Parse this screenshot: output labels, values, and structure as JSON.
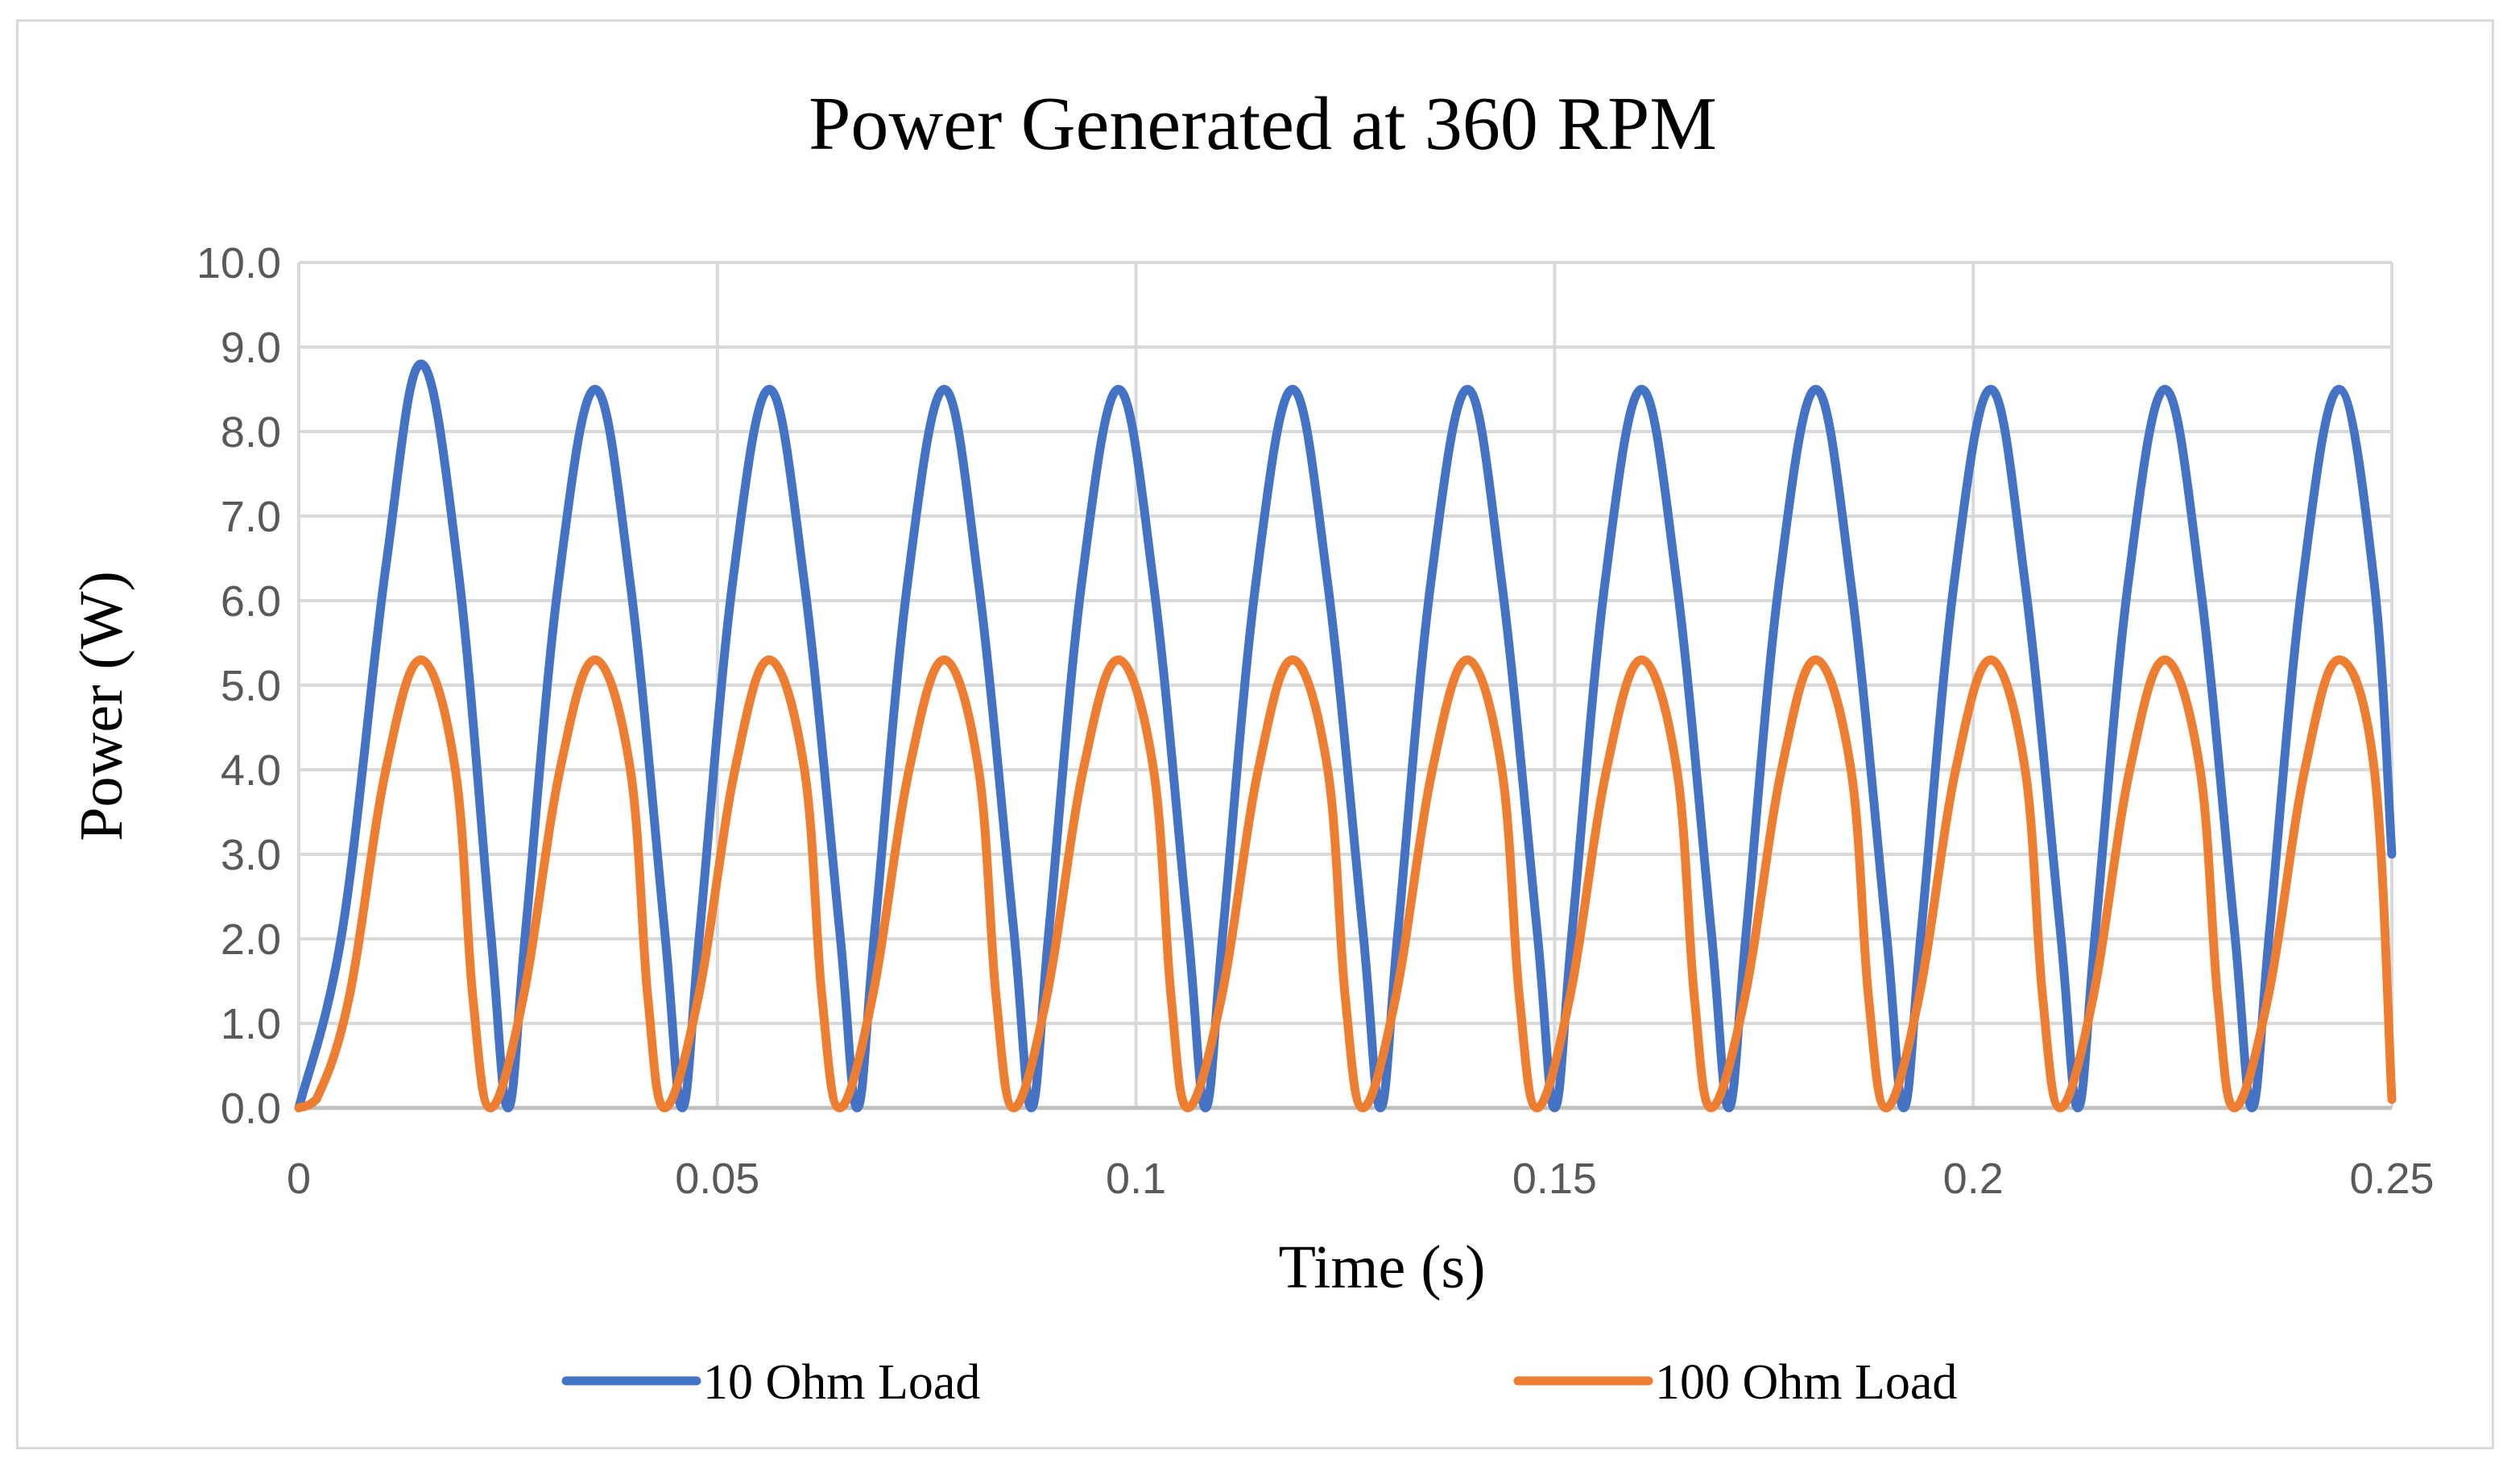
{
  "chart_data": {
    "type": "line",
    "title": "Power Generated at 360 RPM",
    "xlabel": "Time (s)",
    "ylabel": "Power (W)",
    "xlim": [
      0,
      0.25
    ],
    "ylim": [
      0,
      10
    ],
    "x_ticks": [
      0,
      0.05,
      0.1,
      0.15,
      0.2,
      0.25
    ],
    "x_tick_labels": [
      "0",
      "0.05",
      "0.1",
      "0.15",
      "0.2",
      "0.25"
    ],
    "y_ticks": [
      0,
      1,
      2,
      3,
      4,
      5,
      6,
      7,
      8,
      9,
      10
    ],
    "y_tick_labels": [
      "0.0",
      "1.0",
      "2.0",
      "3.0",
      "4.0",
      "5.0",
      "6.0",
      "7.0",
      "8.0",
      "9.0",
      "10.0"
    ],
    "grid": true,
    "legend_position": "bottom",
    "series": [
      {
        "name": "10 Ohm Load",
        "color": "#4472c4",
        "description": "periodic pulses, period ~0.0208 s",
        "x": [
          0,
          0.0052,
          0.0104,
          0.0146,
          0.019,
          0.0229,
          0.025,
          0.0271,
          0.031,
          0.0354,
          0.0396,
          0.0437,
          0.0458,
          0.0479,
          0.0518,
          0.0562,
          0.0604,
          0.0646,
          0.0667,
          0.0688,
          0.0727,
          0.0771,
          0.0812,
          0.0854,
          0.0875,
          0.0896,
          0.0935,
          0.0979,
          0.1021,
          0.1062,
          0.1083,
          0.1104,
          0.1143,
          0.1187,
          0.1229,
          0.1271,
          0.1292,
          0.1313,
          0.1352,
          0.1396,
          0.1437,
          0.1479,
          0.15,
          0.1521,
          0.156,
          0.1604,
          0.1646,
          0.1687,
          0.1708,
          0.1729,
          0.1768,
          0.1812,
          0.1854,
          0.1896,
          0.1917,
          0.1938,
          0.1977,
          0.2021,
          0.2062,
          0.2104,
          0.2125,
          0.2146,
          0.2185,
          0.2229,
          0.2271,
          0.2312,
          0.2333,
          0.2354,
          0.2393,
          0.2437,
          0.2479,
          0.25
        ],
        "y": [
          0.0,
          2.1,
          6.4,
          8.8,
          6.4,
          2.1,
          0.0,
          2.1,
          6.2,
          8.5,
          6.2,
          2.1,
          0.0,
          2.1,
          6.2,
          8.5,
          6.2,
          2.1,
          0.0,
          2.1,
          6.2,
          8.5,
          6.2,
          2.1,
          0.0,
          2.1,
          6.2,
          8.5,
          6.2,
          2.1,
          0.0,
          2.1,
          6.2,
          8.5,
          6.2,
          2.1,
          0.0,
          2.1,
          6.2,
          8.5,
          6.2,
          2.1,
          0.0,
          2.1,
          6.2,
          8.5,
          6.2,
          2.1,
          0.0,
          2.1,
          6.2,
          8.5,
          6.2,
          2.1,
          0.0,
          2.1,
          6.2,
          8.5,
          6.2,
          2.1,
          0.0,
          2.1,
          6.2,
          8.5,
          6.2,
          2.1,
          0.0,
          2.1,
          6.2,
          8.5,
          6.2,
          3.0
        ]
      },
      {
        "name": "100 Ohm Load",
        "color": "#ed7d31",
        "description": "periodic pulses, period ~0.0208 s",
        "x": [
          0,
          0.0021,
          0.006,
          0.0104,
          0.0146,
          0.0187,
          0.0208,
          0.0229,
          0.0268,
          0.0312,
          0.0354,
          0.0396,
          0.0417,
          0.0437,
          0.0477,
          0.0521,
          0.0562,
          0.0604,
          0.0625,
          0.0646,
          0.0685,
          0.0729,
          0.0771,
          0.0812,
          0.0833,
          0.0854,
          0.0893,
          0.0937,
          0.0979,
          0.1021,
          0.1042,
          0.1062,
          0.1102,
          0.1146,
          0.1187,
          0.1229,
          0.125,
          0.1271,
          0.131,
          0.1354,
          0.1396,
          0.1437,
          0.1458,
          0.1479,
          0.1518,
          0.1562,
          0.1604,
          0.1646,
          0.1667,
          0.1687,
          0.1727,
          0.1771,
          0.1812,
          0.1854,
          0.1875,
          0.1896,
          0.1935,
          0.1979,
          0.2021,
          0.2062,
          0.2083,
          0.2104,
          0.2143,
          0.2187,
          0.2229,
          0.2271,
          0.2292,
          0.2312,
          0.2352,
          0.2396,
          0.2437,
          0.2479,
          0.25
        ],
        "y": [
          0.0,
          0.1,
          1.3,
          4.0,
          5.3,
          4.0,
          1.3,
          0.0,
          1.3,
          4.0,
          5.3,
          4.0,
          1.3,
          0.0,
          1.3,
          4.0,
          5.3,
          4.0,
          1.3,
          0.0,
          1.3,
          4.0,
          5.3,
          4.0,
          1.3,
          0.0,
          1.3,
          4.0,
          5.3,
          4.0,
          1.3,
          0.0,
          1.3,
          4.0,
          5.3,
          4.0,
          1.3,
          0.0,
          1.3,
          4.0,
          5.3,
          4.0,
          1.3,
          0.0,
          1.3,
          4.0,
          5.3,
          4.0,
          1.3,
          0.0,
          1.3,
          4.0,
          5.3,
          4.0,
          1.3,
          0.0,
          1.3,
          4.0,
          5.3,
          4.0,
          1.3,
          0.0,
          1.3,
          4.0,
          5.3,
          4.0,
          1.3,
          0.0,
          1.3,
          4.0,
          5.3,
          4.0,
          0.1
        ]
      }
    ]
  }
}
